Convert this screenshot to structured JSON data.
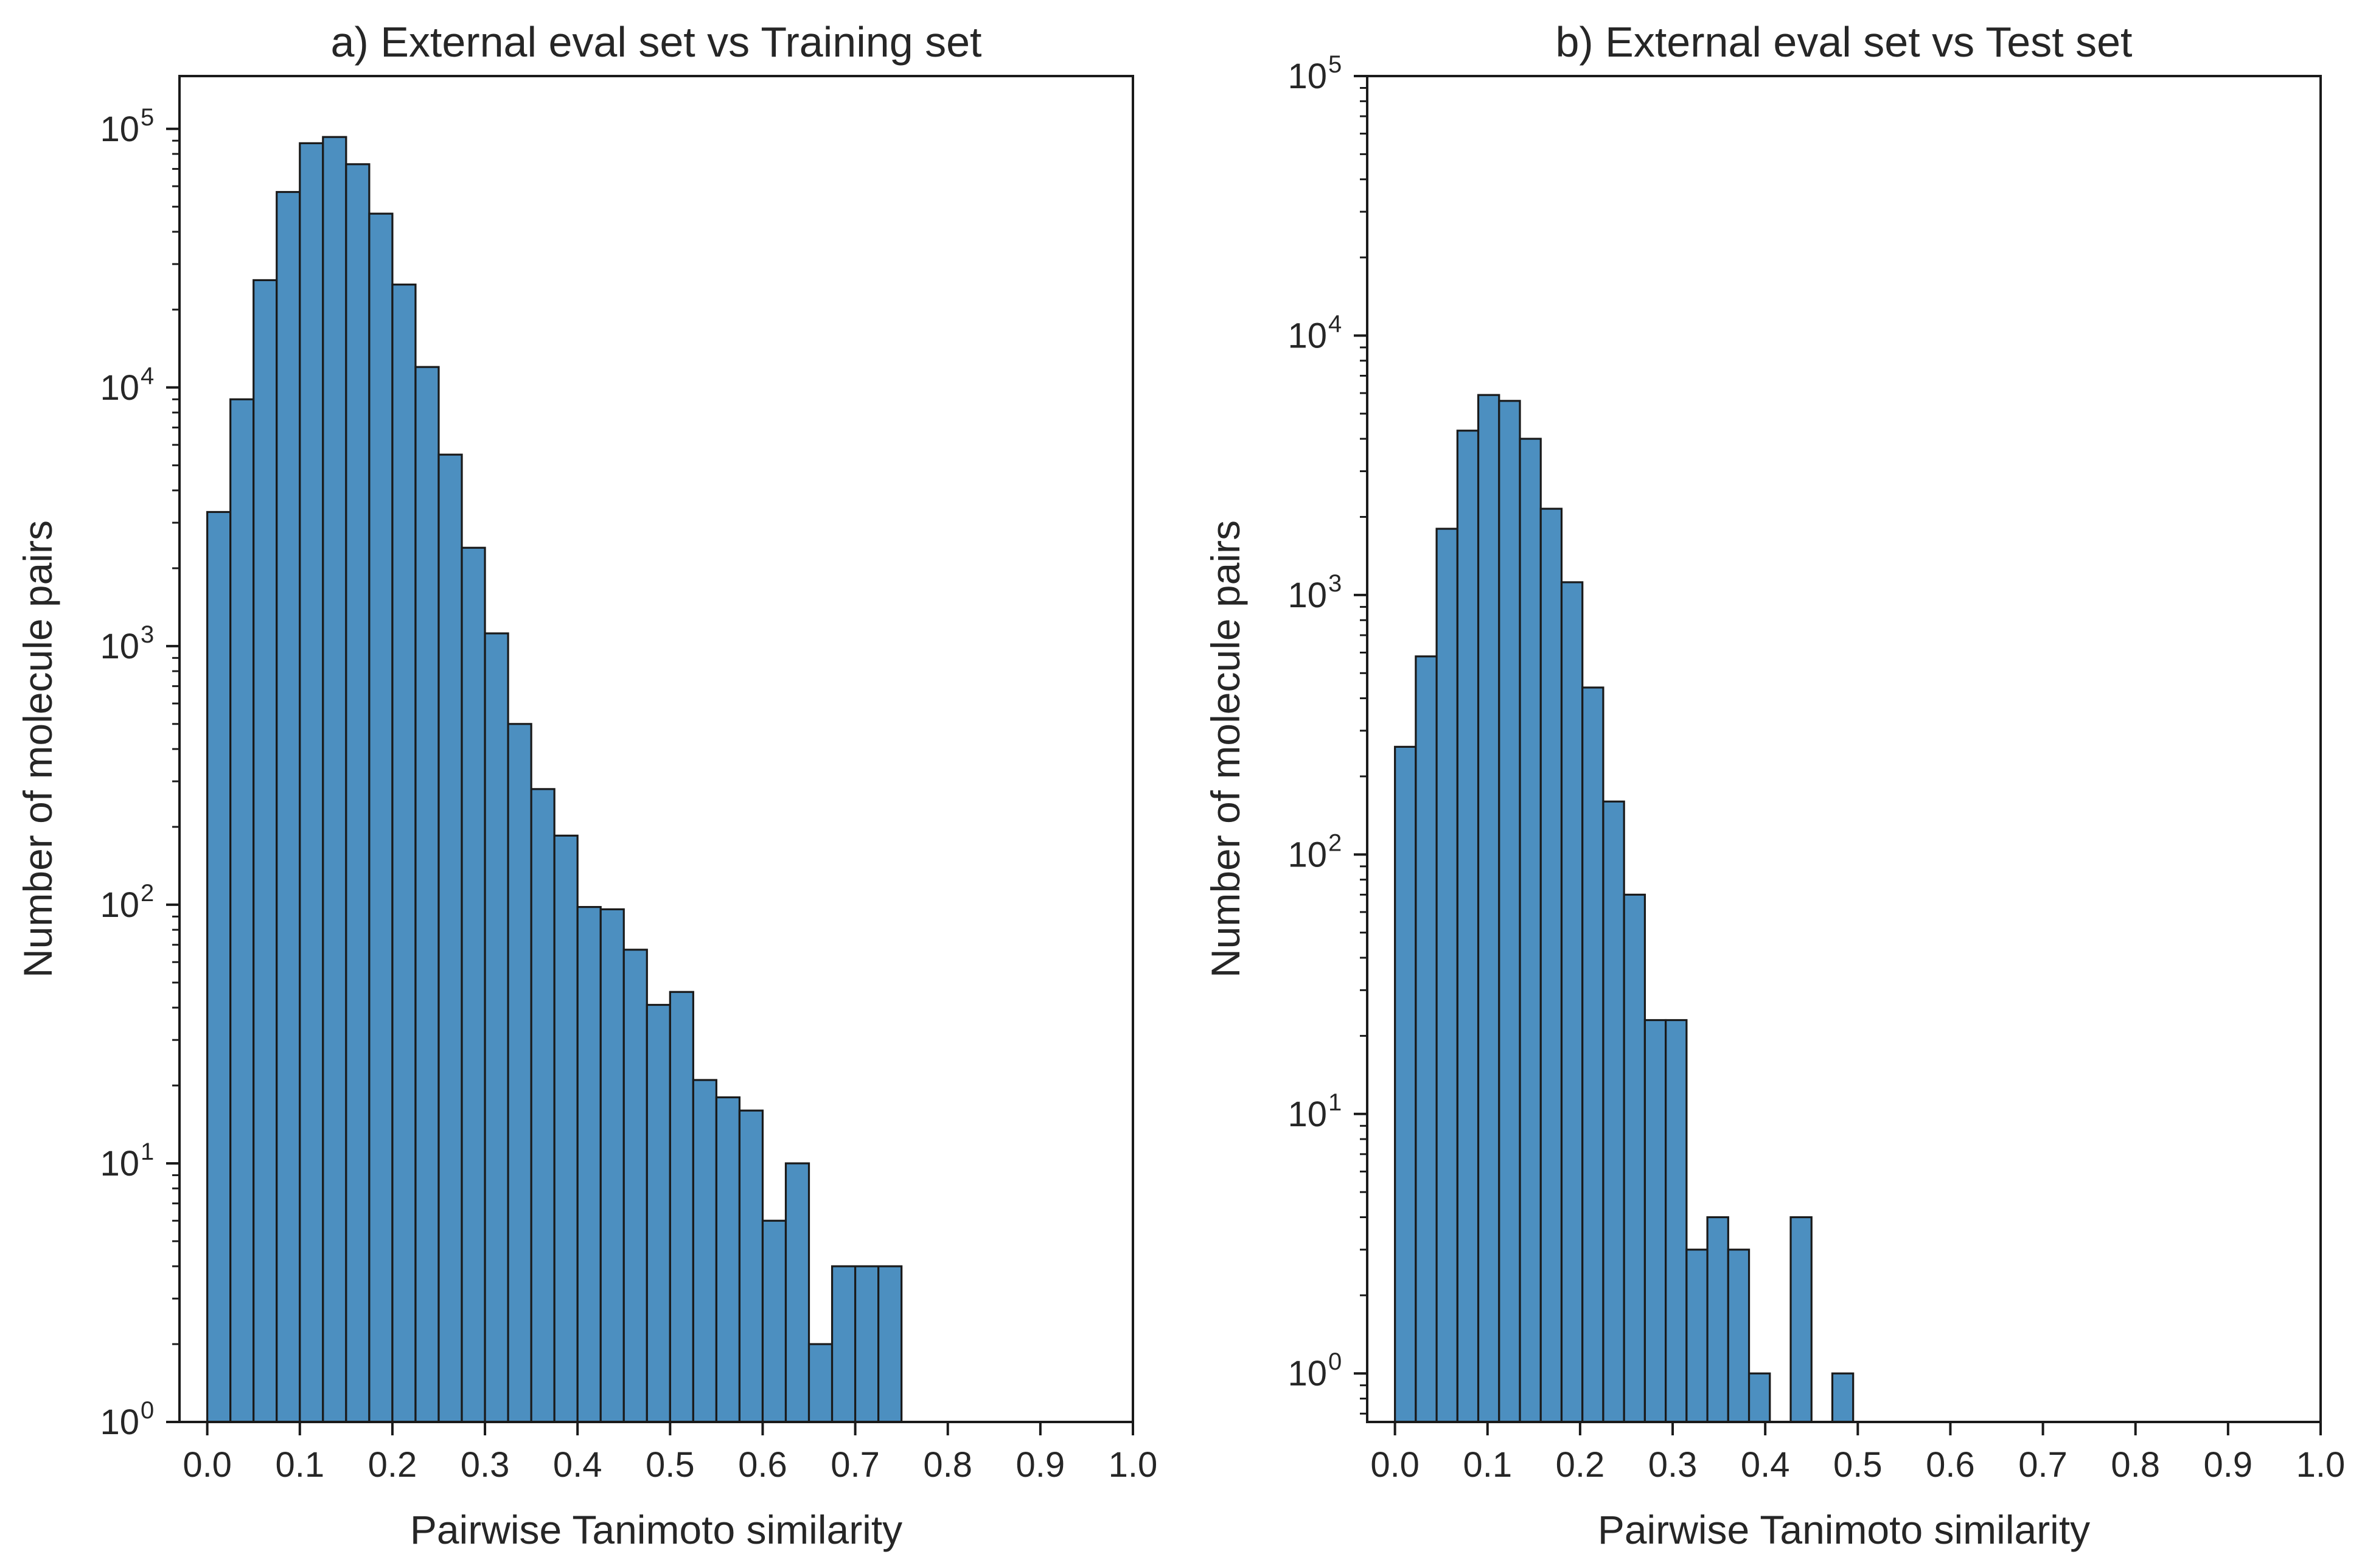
{
  "figure": {
    "background": "#ffffff",
    "bar_color": "#4c8fc0",
    "edge_color": "#1a1a1a"
  },
  "chart_data": [
    {
      "type": "bar",
      "title": "a) External eval set vs Training set",
      "xlabel": "Pairwise Tanimoto similarity",
      "ylabel": "Number of molecule pairs",
      "yscale": "log",
      "xlim": [
        -0.03,
        1.0
      ],
      "ylim": [
        1,
        160000
      ],
      "grid": false,
      "legend": "none",
      "xticks": [
        "0.0",
        "0.1",
        "0.2",
        "0.3",
        "0.4",
        "0.5",
        "0.6",
        "0.7",
        "0.8",
        "0.9",
        "1.0"
      ],
      "yticks": [
        {
          "base": "10",
          "exp": "0"
        },
        {
          "base": "10",
          "exp": "1"
        },
        {
          "base": "10",
          "exp": "2"
        },
        {
          "base": "10",
          "exp": "3"
        },
        {
          "base": "10",
          "exp": "4"
        },
        {
          "base": "10",
          "exp": "5"
        }
      ],
      "bin_width": 0.025,
      "bin_start": 0.0,
      "values": [
        3300,
        9000,
        26000,
        57000,
        88000,
        93000,
        73000,
        47000,
        25000,
        12000,
        5500,
        2400,
        1120,
        500,
        280,
        185,
        98,
        96,
        67,
        41,
        46,
        21,
        18,
        16,
        6,
        10,
        2,
        4,
        4,
        4
      ]
    },
    {
      "type": "bar",
      "title": "b) External eval set vs Test set",
      "xlabel": "Pairwise Tanimoto similarity",
      "ylabel": "Number of molecule pairs",
      "yscale": "log",
      "xlim": [
        -0.03,
        1.0
      ],
      "ylim": [
        0.65,
        100000
      ],
      "grid": false,
      "legend": "none",
      "xticks": [
        "0.0",
        "0.1",
        "0.2",
        "0.3",
        "0.4",
        "0.5",
        "0.6",
        "0.7",
        "0.8",
        "0.9",
        "1.0"
      ],
      "yticks": [
        {
          "base": "10",
          "exp": "0"
        },
        {
          "base": "10",
          "exp": "1"
        },
        {
          "base": "10",
          "exp": "2"
        },
        {
          "base": "10",
          "exp": "3"
        },
        {
          "base": "10",
          "exp": "4"
        },
        {
          "base": "10",
          "exp": "5"
        }
      ],
      "bin_width": 0.0225,
      "bin_start": 0.0,
      "values": [
        260,
        580,
        1800,
        4300,
        5900,
        5600,
        4000,
        2150,
        1120,
        440,
        160,
        70,
        23,
        23,
        3,
        4,
        3,
        1,
        0,
        4,
        0,
        1
      ]
    }
  ]
}
